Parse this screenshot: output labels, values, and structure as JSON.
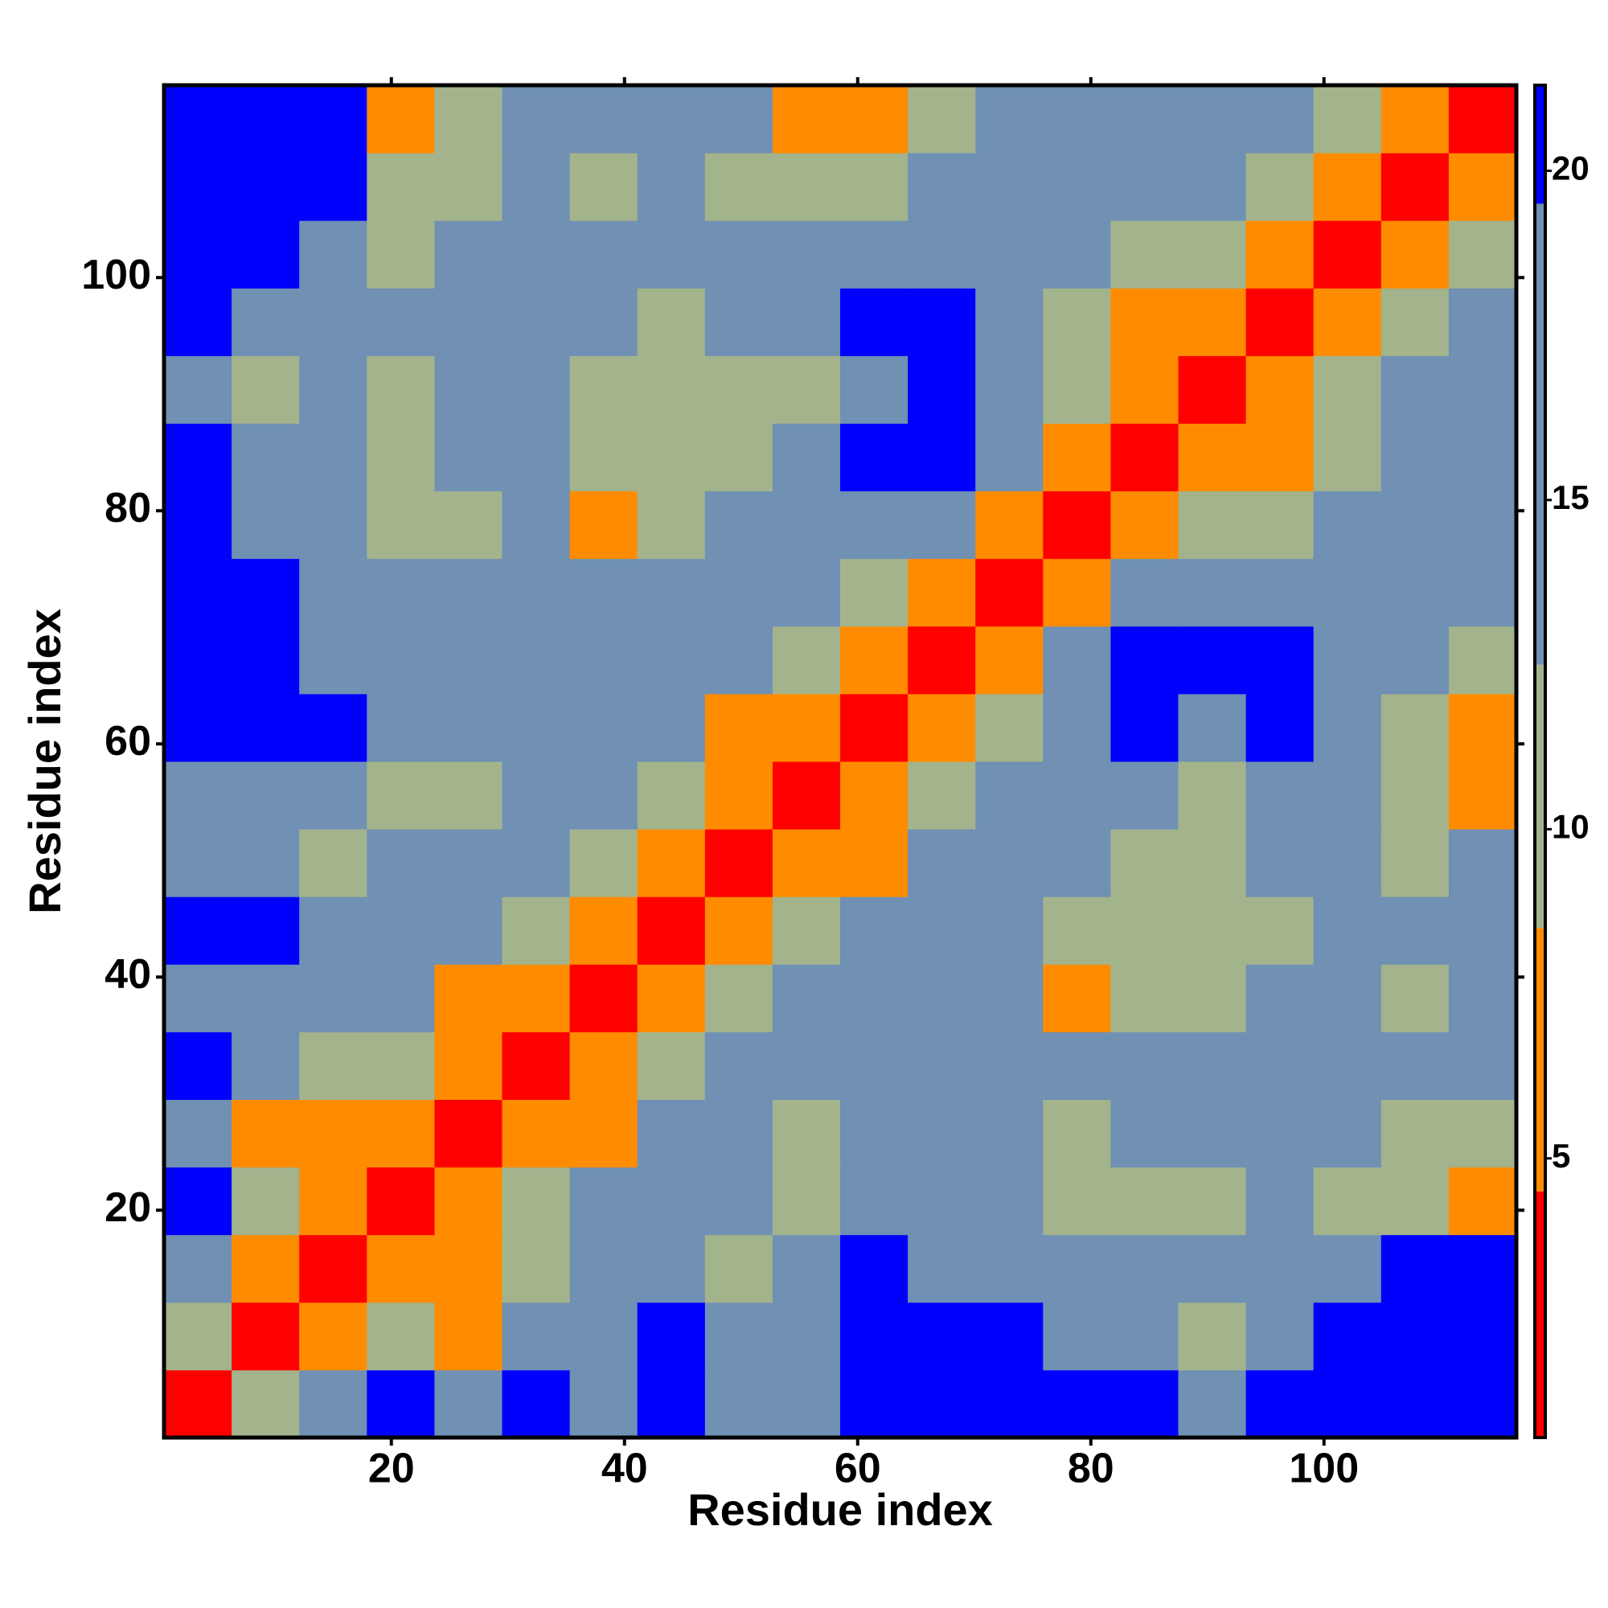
{
  "chart_data": {
    "type": "heatmap",
    "xlabel": "Residue index",
    "ylabel": "Residue index",
    "x": [
      3.4,
      9.2,
      15,
      20.8,
      26.6,
      32.4,
      38.2,
      44,
      49.8,
      55.6,
      61.4,
      67.2,
      73,
      78.8,
      84.6,
      90.4,
      96.2,
      102,
      107.8,
      113.6
    ],
    "y": [
      3.4,
      9.2,
      15,
      20.8,
      26.6,
      32.4,
      38.2,
      44,
      49.8,
      55.6,
      61.4,
      67.2,
      73,
      78.8,
      84.6,
      90.4,
      96.2,
      102,
      107.8,
      113.6
    ],
    "z": [
      [
        3,
        10,
        19,
        21,
        18,
        21,
        19,
        21,
        18,
        19,
        21,
        21,
        21,
        21,
        21,
        19,
        21,
        21,
        21,
        21
      ],
      [
        10,
        3,
        7,
        12,
        8,
        15,
        16,
        20,
        15,
        16,
        20,
        21,
        21,
        17,
        18,
        12,
        17,
        21,
        21,
        21
      ],
      [
        19,
        7,
        3,
        6,
        7,
        12,
        14,
        18,
        12,
        14,
        20,
        19,
        16,
        15,
        13,
        13,
        15,
        18,
        20,
        21
      ],
      [
        21,
        12,
        6,
        3,
        6,
        9,
        15,
        19,
        13,
        12,
        16,
        15,
        13,
        12,
        12,
        12,
        14,
        12,
        9,
        8
      ],
      [
        18,
        8,
        7,
        6,
        3,
        6,
        7,
        14,
        13,
        12,
        16,
        14,
        13,
        12,
        13,
        14,
        15,
        14,
        10,
        9
      ],
      [
        21,
        15,
        12,
        9,
        6,
        3,
        6,
        10,
        15,
        13,
        17,
        16,
        15,
        13,
        14,
        13,
        16,
        17,
        18,
        17
      ],
      [
        19,
        16,
        14,
        15,
        7,
        6,
        3,
        6,
        10,
        14,
        15,
        17,
        15,
        8,
        11,
        12,
        13,
        14,
        12,
        13
      ],
      [
        21,
        20,
        18,
        19,
        14,
        10,
        6,
        3,
        6,
        9,
        13,
        18,
        19,
        9,
        11,
        12,
        12,
        15,
        13,
        14
      ],
      [
        18,
        15,
        12,
        13,
        13,
        15,
        10,
        6,
        3,
        5,
        8,
        15,
        16,
        13,
        11,
        10,
        14,
        16,
        12,
        13
      ],
      [
        19,
        16,
        14,
        12,
        12,
        13,
        14,
        9,
        5,
        3,
        6,
        11,
        17,
        16,
        14,
        12,
        14,
        16,
        11,
        8
      ],
      [
        21,
        20,
        20,
        16,
        16,
        17,
        15,
        13,
        8,
        6,
        3,
        6,
        11,
        18,
        20,
        17,
        20,
        18,
        12,
        8
      ],
      [
        21,
        21,
        19,
        15,
        14,
        16,
        17,
        18,
        15,
        11,
        6,
        3,
        6,
        16,
        20,
        20,
        21,
        19,
        13,
        12
      ],
      [
        21,
        21,
        16,
        13,
        13,
        15,
        15,
        19,
        16,
        17,
        11,
        6,
        3,
        6,
        14,
        15,
        18,
        17,
        14,
        14
      ],
      [
        21,
        17,
        15,
        12,
        12,
        13,
        8,
        9,
        13,
        16,
        18,
        16,
        6,
        3,
        6,
        9,
        9,
        13,
        14,
        13
      ],
      [
        21,
        18,
        13,
        12,
        13,
        14,
        11,
        11,
        11,
        14,
        20,
        20,
        14,
        6,
        3,
        6,
        8,
        11,
        16,
        17
      ],
      [
        19,
        12,
        13,
        12,
        14,
        13,
        12,
        12,
        10,
        12,
        17,
        20,
        15,
        9,
        6,
        3,
        6,
        9,
        13,
        15
      ],
      [
        21,
        17,
        15,
        14,
        15,
        16,
        13,
        12,
        14,
        14,
        20,
        21,
        18,
        9,
        8,
        6,
        3,
        6,
        10,
        13
      ],
      [
        21,
        21,
        18,
        12,
        14,
        17,
        14,
        15,
        16,
        16,
        18,
        19,
        17,
        13,
        11,
        9,
        6,
        3,
        6,
        10
      ],
      [
        21,
        21,
        20,
        9,
        10,
        18,
        12,
        13,
        12,
        11,
        12,
        13,
        14,
        14,
        16,
        13,
        10,
        6,
        3,
        6
      ],
      [
        21,
        21,
        21,
        8,
        9,
        17,
        13,
        14,
        13,
        8,
        8,
        12,
        14,
        13,
        17,
        15,
        13,
        10,
        6,
        3
      ]
    ],
    "xlim": [
      0.5,
      116.5
    ],
    "ylim": [
      0.5,
      116.5
    ],
    "xticks": [
      20,
      40,
      60,
      80,
      100
    ],
    "yticks": [
      20,
      40,
      60,
      80,
      100
    ],
    "clim": [
      0.76,
      21.3
    ],
    "cticks": [
      5,
      10,
      15,
      20
    ],
    "colorscale": [
      {
        "max": 4.5,
        "color": "#ff0000"
      },
      {
        "max": 8.5,
        "color": "#ff8c00"
      },
      {
        "max": 12.5,
        "color": "#a3b38c"
      },
      {
        "max": 19.5,
        "color": "#7090b4"
      },
      {
        "max": 21.3,
        "color": "#0000ff"
      }
    ]
  }
}
